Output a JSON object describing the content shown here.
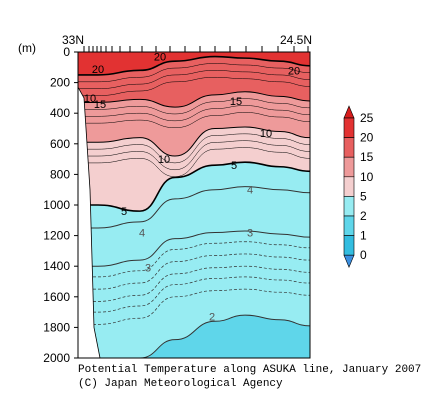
{
  "chart_data": {
    "type": "heatmap",
    "title": "Potential Temperature along ASUKA line, January 2007",
    "credit": "(C) Japan Meteorological Agency",
    "ylabel": "(m)",
    "ylim": [
      0,
      2000
    ],
    "y_ticks": [
      0,
      200,
      400,
      600,
      800,
      1000,
      1200,
      1400,
      1600,
      1800,
      2000
    ],
    "x_start_label": "33N",
    "x_end_label": "24.5N",
    "legend": {
      "levels": [
        0,
        1,
        2,
        5,
        10,
        15,
        20,
        25
      ],
      "tick_labels": [
        "0",
        "1",
        "2",
        "5",
        "10",
        "15",
        "20",
        "25"
      ],
      "colors": [
        "#3a8fe0",
        "#33bde0",
        "#5fd6ea",
        "#97ecf2",
        "#f4cfcf",
        "#ee9a9a",
        "#e76060",
        "#e23232",
        "#d71c1c"
      ]
    },
    "contours": [
      {
        "value": 20,
        "label": "20",
        "depth_profile_m": [
          150,
          120,
          60,
          30,
          40,
          60,
          90
        ]
      },
      {
        "value": 15,
        "label": "15",
        "depth_profile_m": [
          330,
          310,
          360,
          280,
          260,
          290,
          320
        ]
      },
      {
        "value": 10,
        "label": "10",
        "depth_profile_m": [
          590,
          560,
          680,
          500,
          490,
          520,
          560
        ]
      },
      {
        "value": 5,
        "label": "5",
        "depth_profile_m": [
          1000,
          1040,
          820,
          740,
          720,
          750,
          780
        ]
      },
      {
        "value": 4,
        "label": "4",
        "depth_profile_m": [
          1150,
          1110,
          960,
          900,
          880,
          900,
          920
        ]
      },
      {
        "value": 3,
        "label": "3",
        "depth_profile_m": [
          1400,
          1360,
          1220,
          1180,
          1170,
          1190,
          1210
        ]
      },
      {
        "value": 2,
        "label": "2",
        "depth_profile_m": [
          2000,
          2000,
          1880,
          1760,
          1720,
          1750,
          1790
        ]
      }
    ],
    "contour_labels": [
      {
        "text": "20",
        "depth_m": 30
      },
      {
        "text": "20",
        "depth_m": 110
      },
      {
        "text": "20",
        "depth_m": 120
      },
      {
        "text": "10",
        "depth_m": 300
      },
      {
        "text": "15",
        "depth_m": 340
      },
      {
        "text": "15",
        "depth_m": 320
      },
      {
        "text": "10",
        "depth_m": 530
      },
      {
        "text": "10",
        "depth_m": 700
      },
      {
        "text": "5",
        "depth_m": 740
      },
      {
        "text": "5",
        "depth_m": 1040
      },
      {
        "text": "4",
        "depth_m": 900
      },
      {
        "text": "4",
        "depth_m": 1180
      },
      {
        "text": "3",
        "depth_m": 1180
      },
      {
        "text": "3",
        "depth_m": 1410
      },
      {
        "text": "2",
        "depth_m": 1730
      }
    ]
  }
}
